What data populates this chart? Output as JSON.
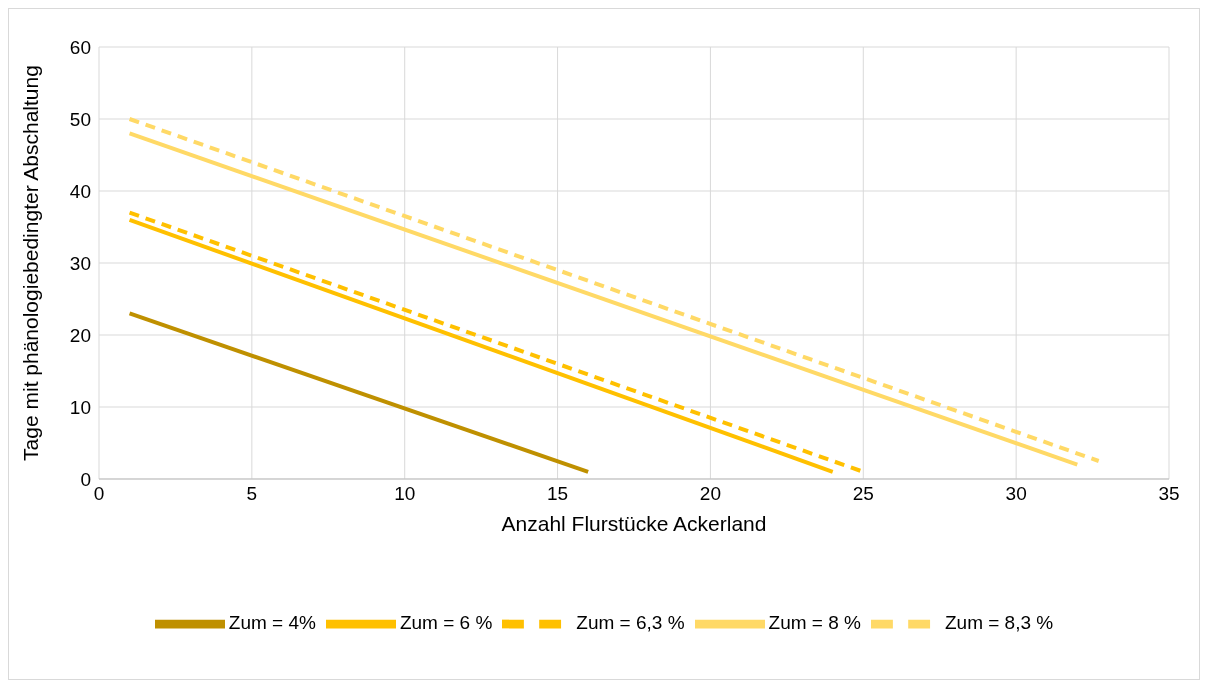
{
  "chart_data": {
    "type": "line",
    "xlabel": "Anzahl Flurstücke Ackerland",
    "ylabel": "Tage mit phänologiebedingter Abschaltung",
    "xlim": [
      0,
      35
    ],
    "xticks": [
      0,
      5,
      10,
      15,
      20,
      25,
      30,
      35
    ],
    "ylim": [
      0,
      60
    ],
    "yticks": [
      0,
      10,
      20,
      30,
      40,
      50,
      60
    ],
    "grid": true,
    "legend": "bottom",
    "marker": "none",
    "series": [
      {
        "name": "Zum = 4%",
        "color": "#bf9000",
        "line_style": "solid",
        "x": [
          1,
          16
        ],
        "values": [
          23,
          1
        ]
      },
      {
        "name": "Zum = 6 %",
        "color": "#ffc000",
        "line_style": "solid",
        "x": [
          1,
          24
        ],
        "values": [
          36,
          1
        ]
      },
      {
        "name": "Zum = 6,3 %",
        "color": "#ffc000",
        "line_style": "dashed",
        "x": [
          1,
          25
        ],
        "values": [
          37,
          1
        ]
      },
      {
        "name": "Zum = 8 %",
        "color": "#ffd966",
        "line_style": "solid",
        "x": [
          1,
          32
        ],
        "values": [
          48,
          2
        ]
      },
      {
        "name": "Zum = 8,3 %",
        "color": "#ffd966",
        "line_style": "dashed",
        "x": [
          1,
          32.7
        ],
        "values": [
          50,
          2.5
        ]
      }
    ]
  }
}
